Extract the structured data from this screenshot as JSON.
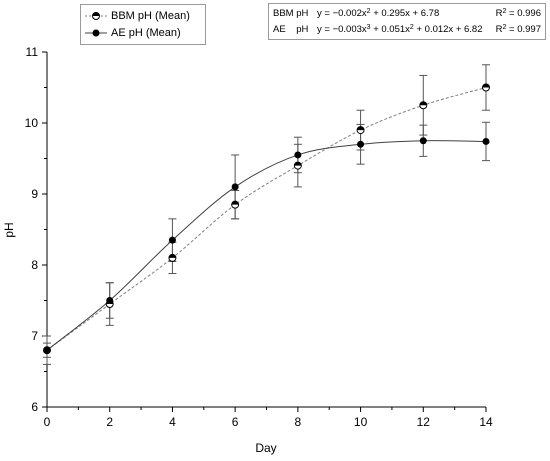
{
  "chart_data": {
    "type": "line",
    "xlabel": "Day",
    "ylabel": "pH",
    "xlim": [
      0,
      14
    ],
    "ylim": [
      6,
      11
    ],
    "xticks": [
      "0",
      "2",
      "4",
      "6",
      "8",
      "10",
      "12",
      "14"
    ],
    "yticks": [
      "6",
      "7",
      "8",
      "9",
      "10",
      "11"
    ],
    "grid": false,
    "legend_position": "top-left",
    "series": [
      {
        "name": "BBM pH (Mean)",
        "color": "#808080",
        "line_style": "dashed",
        "marker": "half-filled circle",
        "x": [
          0,
          2,
          4,
          6,
          8,
          10,
          12,
          14
        ],
        "y": [
          6.8,
          7.45,
          8.1,
          8.85,
          9.4,
          9.9,
          10.25,
          10.5
        ],
        "error": [
          0.2,
          0.3,
          0.22,
          0.2,
          0.3,
          0.28,
          0.42,
          0.32
        ]
      },
      {
        "name": "AE pH (Mean)",
        "color": "#404040",
        "line_style": "solid",
        "marker": "filled circle",
        "x": [
          0,
          2,
          4,
          6,
          8,
          10,
          12,
          14
        ],
        "y": [
          6.8,
          7.5,
          8.35,
          9.1,
          9.55,
          9.7,
          9.75,
          9.74
        ],
        "error": [
          0.1,
          0.25,
          0.3,
          0.45,
          0.25,
          0.28,
          0.22,
          0.27
        ]
      }
    ],
    "fits": [
      {
        "name": "BBM pH",
        "coefficients": [
          -0.002,
          0.295,
          6.78
        ],
        "formula_parts": [
          "y = −0.002x",
          "2",
          " + 0.295x + 6.78"
        ],
        "r2_label": "R",
        "r2_value": " = 0.996"
      },
      {
        "name": "AE    pH",
        "coefficients": [
          -0.003,
          0.051,
          0.012,
          6.82
        ],
        "formula_parts": [
          "y = −0.003x",
          "3",
          " + 0.051x",
          "2",
          " + 0.012x + 6.82"
        ],
        "r2_label": "R",
        "r2_value": " = 0.997"
      }
    ]
  }
}
